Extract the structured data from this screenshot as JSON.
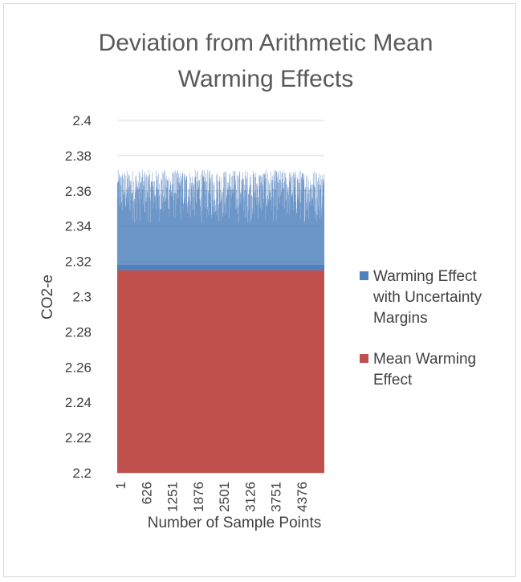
{
  "chart_data": {
    "type": "bar",
    "title_lines": [
      "Deviation from Arithmetic Mean",
      "Warming Effects"
    ],
    "xlabel": "Number of Sample Points",
    "ylabel": "CO2-e",
    "ylim": [
      2.2,
      2.4
    ],
    "yticks": [
      "2.2",
      "2.22",
      "2.24",
      "2.26",
      "2.28",
      "2.3",
      "2.32",
      "2.34",
      "2.36",
      "2.38",
      "2.4"
    ],
    "xticks": [
      "1",
      "626",
      "1251",
      "1876",
      "2501",
      "3126",
      "3751",
      "4376"
    ],
    "x_range": [
      1,
      5000
    ],
    "grid": true,
    "legend_position": "right",
    "series": [
      {
        "name": "Warming Effect with Uncertainty Margins",
        "legend_lines": [
          "Warming Effect",
          "with Uncertainty",
          "Margins"
        ],
        "color": "#4f81bd",
        "value_range": [
          2.315,
          2.372
        ]
      },
      {
        "name": "Mean Warming Effect",
        "legend_lines": [
          "Mean Warming",
          "Effect"
        ],
        "color": "#c0504d",
        "value": 2.315
      }
    ]
  }
}
